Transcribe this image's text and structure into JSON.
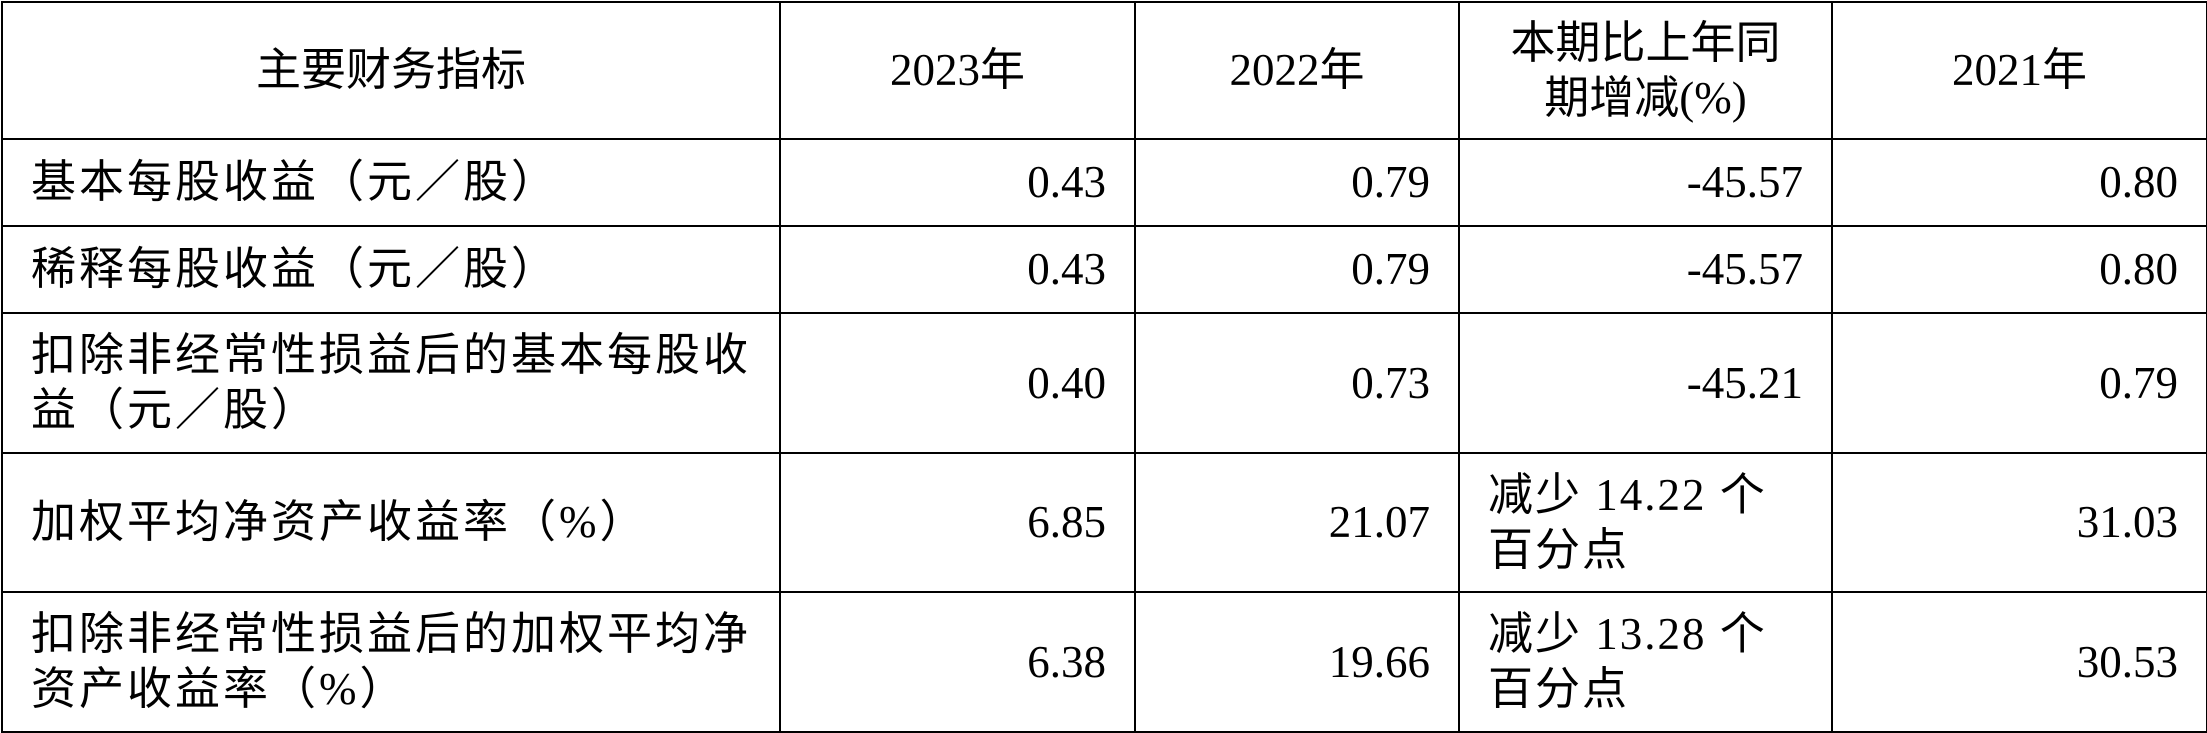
{
  "table": {
    "header": [
      "主要财务指标",
      "2023年",
      "2022年",
      "本期比上年同期增减(%)",
      "2021年"
    ],
    "rows": [
      [
        "基本每股收益（元／股）",
        "0.43",
        "0.79",
        "-45.57",
        "0.80"
      ],
      [
        "稀释每股收益（元／股）",
        "0.43",
        "0.79",
        "-45.57",
        "0.80"
      ],
      [
        "扣除非经常性损益后的基本每股收益（元／股）",
        "0.40",
        "0.73",
        "-45.21",
        "0.79"
      ],
      [
        "加权平均净资产收益率（%）",
        "6.85",
        "21.07",
        "减少 14.22 个百分点",
        "31.03"
      ],
      [
        "扣除非经常性损益后的加权平均净资产收益率（%）",
        "6.38",
        "19.66",
        "减少 13.28 个百分点",
        "30.53"
      ]
    ]
  }
}
